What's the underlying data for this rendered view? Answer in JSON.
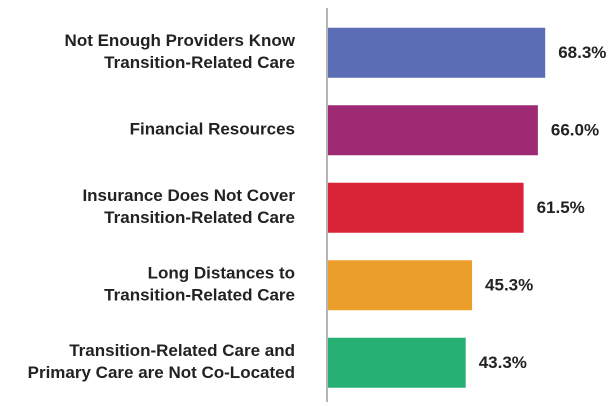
{
  "chart_data": {
    "type": "hbar",
    "categories": [
      [
        "Not Enough Providers Know",
        "Transition-Related Care"
      ],
      [
        "Financial Resources"
      ],
      [
        "Insurance Does Not Cover",
        "Transition-Related Care"
      ],
      [
        "Long Distances to",
        "Transition-Related Care"
      ],
      [
        "Transition-Related Care and",
        "Primary Care are Not Co-Located"
      ]
    ],
    "values": [
      68.3,
      66.0,
      61.5,
      45.3,
      43.3
    ],
    "value_labels": [
      "68.3%",
      "66.0%",
      "61.5%",
      "45.3%",
      "43.3%"
    ],
    "colors": [
      "#5b6db5",
      "#9e2a74",
      "#d92437",
      "#ec9e2b",
      "#27b073"
    ],
    "xlim": [
      0,
      100
    ]
  }
}
